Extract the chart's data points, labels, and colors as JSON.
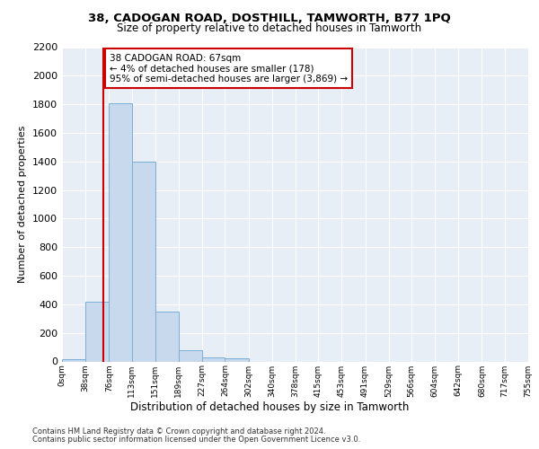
{
  "title1": "38, CADOGAN ROAD, DOSTHILL, TAMWORTH, B77 1PQ",
  "title2": "Size of property relative to detached houses in Tamworth",
  "xlabel": "Distribution of detached houses by size in Tamworth",
  "ylabel": "Number of detached properties",
  "bin_edges": [
    0,
    38,
    76,
    113,
    151,
    189,
    227,
    264,
    302,
    340,
    378,
    415,
    453,
    491,
    529,
    566,
    604,
    642,
    680,
    717,
    755
  ],
  "bar_heights": [
    15,
    420,
    1810,
    1400,
    350,
    80,
    30,
    20,
    0,
    0,
    0,
    0,
    0,
    0,
    0,
    0,
    0,
    0,
    0,
    0
  ],
  "bar_color": "#c8d9ee",
  "bar_edge_color": "#7aaed6",
  "property_size": 67,
  "vline_color": "#cc0000",
  "annotation_line1": "38 CADOGAN ROAD: 67sqm",
  "annotation_line2": "← 4% of detached houses are smaller (178)",
  "annotation_line3": "95% of semi-detached houses are larger (3,869) →",
  "annotation_box_color": "#ffffff",
  "annotation_box_edge_color": "#cc0000",
  "ylim": [
    0,
    2200
  ],
  "yticks": [
    0,
    200,
    400,
    600,
    800,
    1000,
    1200,
    1400,
    1600,
    1800,
    2000,
    2200
  ],
  "tick_labels": [
    "0sqm",
    "38sqm",
    "76sqm",
    "113sqm",
    "151sqm",
    "189sqm",
    "227sqm",
    "264sqm",
    "302sqm",
    "340sqm",
    "378sqm",
    "415sqm",
    "453sqm",
    "491sqm",
    "529sqm",
    "566sqm",
    "604sqm",
    "642sqm",
    "680sqm",
    "717sqm",
    "755sqm"
  ],
  "footer1": "Contains HM Land Registry data © Crown copyright and database right 2024.",
  "footer2": "Contains public sector information licensed under the Open Government Licence v3.0.",
  "plot_bg_color": "#e8eef6"
}
